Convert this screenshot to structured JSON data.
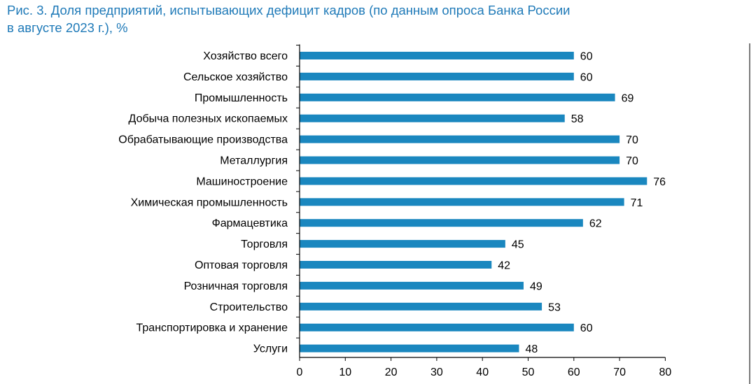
{
  "title": {
    "line1": "Рис. 3. Доля предприятий, испытывающих дефицит кадров (по данным опроса Банка России",
    "line2": "в августе 2023 г.), %"
  },
  "colors": {
    "bar": "#1a87bf",
    "title": "#1f7ab8"
  },
  "chart_data": {
    "type": "bar",
    "orientation": "horizontal",
    "title": "Рис. 3. Доля предприятий, испытывающих дефицит кадров (по данным опроса Банка России в августе 2023 г.), %",
    "categories": [
      "Хозяйство всего",
      "Сельское хозяйство",
      "Промышленность",
      "Добыча полезных ископаемых",
      "Обрабатывающие производства",
      "Металлургия",
      "Машиностроение",
      "Химическая промышленность",
      "Фармацевтика",
      "Торговля",
      "Оптовая торговля",
      "Розничная торговля",
      "Строительство",
      "Транспортировка и хранение",
      "Услуги"
    ],
    "values": [
      60,
      60,
      69,
      58,
      70,
      70,
      76,
      71,
      62,
      45,
      42,
      49,
      53,
      60,
      48
    ],
    "xlim": [
      0,
      80
    ],
    "xticks": [
      0,
      10,
      20,
      30,
      40,
      50,
      60,
      70,
      80
    ],
    "grid": false,
    "legend": "none"
  }
}
